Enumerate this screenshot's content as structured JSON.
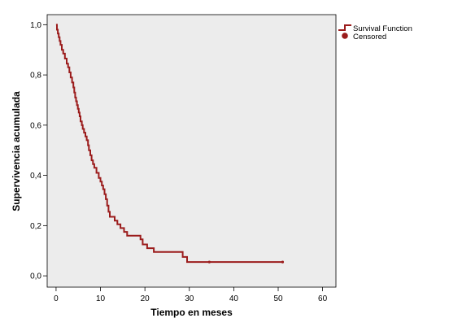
{
  "chart_data": {
    "type": "line",
    "xlabel": "Tiempo en meses",
    "ylabel": "Supervivencia acumulada",
    "xlim": [
      -2,
      63
    ],
    "ylim": [
      -0.045,
      1.04
    ],
    "x_ticks": [
      0,
      10,
      20,
      30,
      40,
      50,
      60
    ],
    "x_tick_labels": [
      "0",
      "10",
      "20",
      "30",
      "40",
      "50",
      "60"
    ],
    "y_ticks": [
      0.0,
      0.2,
      0.4,
      0.6,
      0.8,
      1.0
    ],
    "y_tick_labels": [
      "0,0",
      "0,2",
      "0,4",
      "0,6",
      "0,8",
      "1,0"
    ],
    "grid": false,
    "background": "#ececec",
    "legend_position": "top-right, outside plot",
    "series": [
      {
        "name": "Survival Function",
        "color": "#9b1c1c",
        "step": true,
        "points": [
          [
            0,
            1.0
          ],
          [
            0.2,
            0.98
          ],
          [
            0.4,
            0.965
          ],
          [
            0.6,
            0.95
          ],
          [
            0.8,
            0.935
          ],
          [
            1.0,
            0.92
          ],
          [
            1.3,
            0.9
          ],
          [
            1.6,
            0.885
          ],
          [
            2.0,
            0.865
          ],
          [
            2.4,
            0.845
          ],
          [
            2.7,
            0.83
          ],
          [
            3.0,
            0.81
          ],
          [
            3.3,
            0.79
          ],
          [
            3.6,
            0.77
          ],
          [
            3.9,
            0.75
          ],
          [
            4.1,
            0.73
          ],
          [
            4.3,
            0.71
          ],
          [
            4.5,
            0.695
          ],
          [
            4.7,
            0.68
          ],
          [
            4.9,
            0.665
          ],
          [
            5.1,
            0.65
          ],
          [
            5.3,
            0.635
          ],
          [
            5.5,
            0.615
          ],
          [
            5.8,
            0.6
          ],
          [
            6.0,
            0.585
          ],
          [
            6.3,
            0.57
          ],
          [
            6.6,
            0.555
          ],
          [
            6.9,
            0.54
          ],
          [
            7.2,
            0.52
          ],
          [
            7.4,
            0.5
          ],
          [
            7.7,
            0.48
          ],
          [
            8.0,
            0.46
          ],
          [
            8.3,
            0.445
          ],
          [
            8.6,
            0.43
          ],
          [
            9.1,
            0.41
          ],
          [
            9.6,
            0.39
          ],
          [
            10.0,
            0.375
          ],
          [
            10.3,
            0.36
          ],
          [
            10.6,
            0.345
          ],
          [
            10.9,
            0.325
          ],
          [
            11.2,
            0.305
          ],
          [
            11.5,
            0.28
          ],
          [
            11.8,
            0.255
          ],
          [
            12.1,
            0.235
          ],
          [
            13.2,
            0.22
          ],
          [
            13.8,
            0.205
          ],
          [
            14.5,
            0.19
          ],
          [
            15.3,
            0.175
          ],
          [
            16.0,
            0.16
          ],
          [
            19.0,
            0.145
          ],
          [
            19.5,
            0.125
          ],
          [
            20.5,
            0.11
          ],
          [
            22.0,
            0.095
          ],
          [
            28.5,
            0.075
          ],
          [
            29.5,
            0.055
          ],
          [
            51.0,
            0.055
          ]
        ]
      }
    ],
    "censored": {
      "name": "Censored",
      "color": "#9b1c1c",
      "points": [
        [
          34.5,
          0.055
        ],
        [
          51.0,
          0.055
        ]
      ]
    }
  }
}
